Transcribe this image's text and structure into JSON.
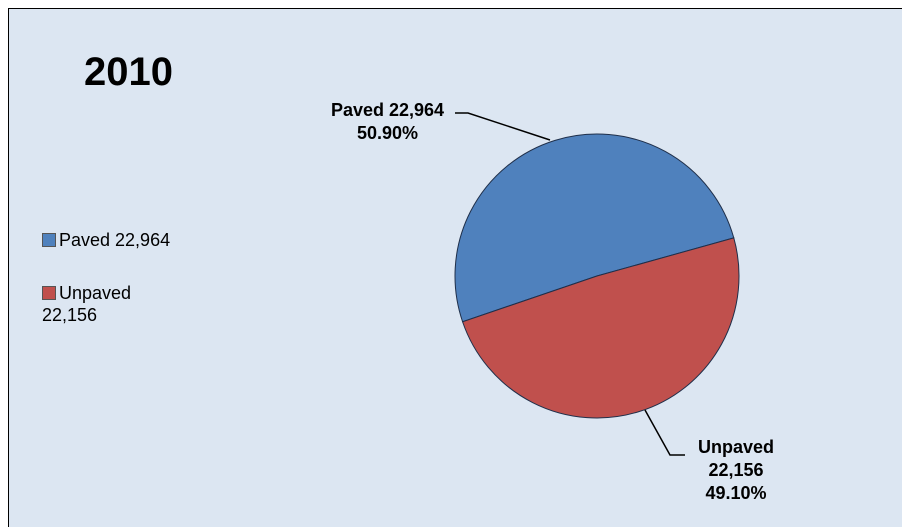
{
  "chart_data": {
    "type": "pie",
    "title": "2010",
    "categories": [
      "Paved 22,964",
      "Unpaved 22,156"
    ],
    "values": [
      50.9,
      49.1
    ],
    "value_labels": [
      "50.90%",
      "49.10%"
    ],
    "colors": [
      "#4f81bd",
      "#c0504d"
    ],
    "legend": "left"
  }
}
